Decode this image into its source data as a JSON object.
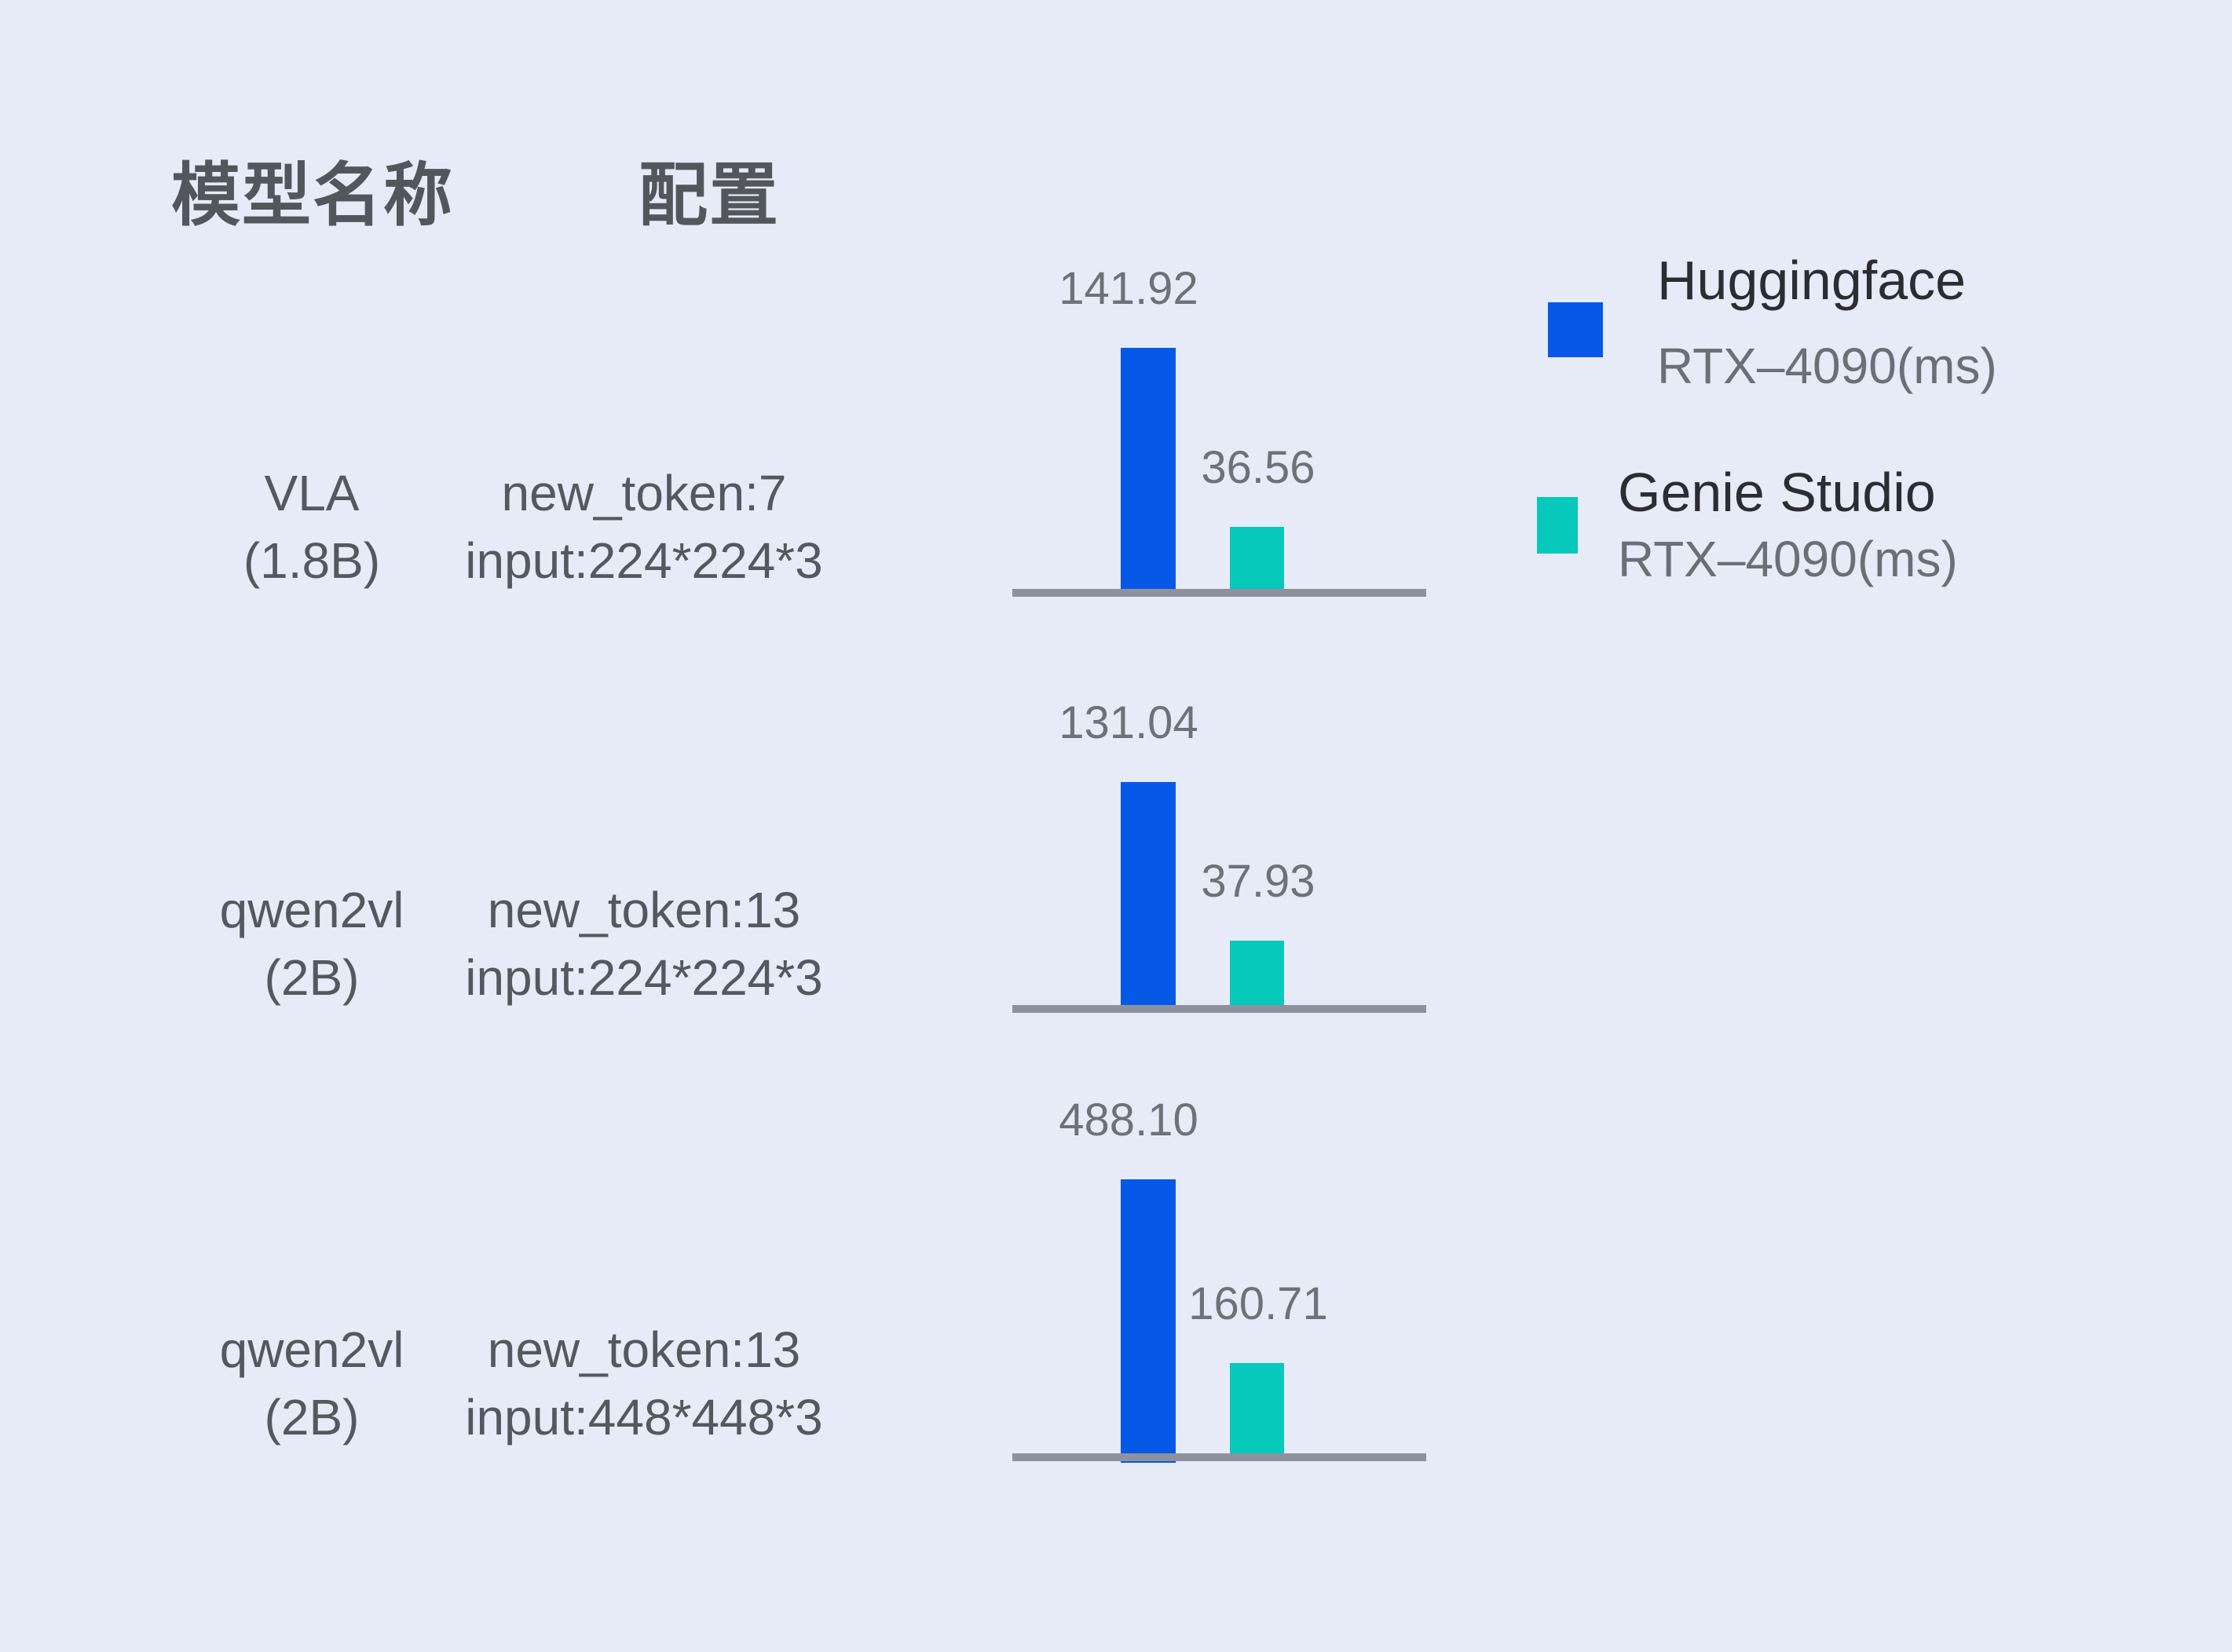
{
  "page": {
    "background_color": "#e7ebf8",
    "language": "zh-CN"
  },
  "table": {
    "headers": {
      "model": "模型名称",
      "config": "配置"
    },
    "rows": [
      {
        "model_name": "VLA",
        "model_size": "(1.8B)",
        "config_line1": "new_token:7",
        "config_line2": "input:224*224*3",
        "huggingface_ms": "141.92",
        "genie_ms": "36.56"
      },
      {
        "model_name": "qwen2vl",
        "model_size": "(2B)",
        "config_line1": "new_token:13",
        "config_line2": "input:224*224*3",
        "huggingface_ms": "131.04",
        "genie_ms": "37.93"
      },
      {
        "model_name": "qwen2vl",
        "model_size": "(2B)",
        "config_line1": "new_token:13",
        "config_line2": "input:448*448*3",
        "huggingface_ms": "488.10",
        "genie_ms": "160.71"
      }
    ]
  },
  "legend": [
    {
      "name": "Huggingface",
      "sub": "RTX–4090(ms)",
      "color": "#0659e6",
      "swatch": "blue-square"
    },
    {
      "name": "Genie Studio",
      "sub": "RTX–4090(ms)",
      "color": "#06c9bb",
      "swatch": "teal-square"
    }
  ],
  "chart_data": {
    "type": "bar",
    "title": "",
    "unit": "ms",
    "categories": [
      "VLA (1.8B) — new_token:7, input:224*224*3",
      "qwen2vl (2B) — new_token:13, input:224*224*3",
      "qwen2vl (2B) — new_token:13, input:448*448*3"
    ],
    "series": [
      {
        "name": "Huggingface RTX–4090(ms)",
        "color": "#0659e6",
        "values": [
          141.92,
          131.04,
          488.1
        ]
      },
      {
        "name": "Genie Studio RTX–4090(ms)",
        "color": "#06c9bb",
        "values": [
          36.56,
          37.93,
          160.71
        ]
      }
    ],
    "value_labels_shown": true,
    "grid": false,
    "axis_line_color": "#8e929c",
    "legend_position": "right",
    "scaling_note": "each row is an independent mini bar chart scaled to its own max"
  },
  "colors": {
    "background": "#e7ebf8",
    "text_dark": "#55585f",
    "header_text": "#54565d",
    "value_label_text": "#6e7278",
    "legend_main_text": "#2b2d33",
    "legend_sub_text": "#6b6f76",
    "axis_gray": "#8e929c",
    "huggingface_blue": "#0659e6",
    "genie_teal": "#06c9bb"
  }
}
